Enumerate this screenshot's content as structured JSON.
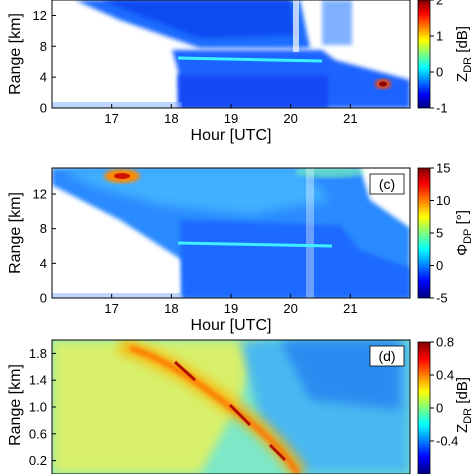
{
  "chart_data": [
    {
      "type": "heatmap",
      "panel_label": "",
      "xlabel": "Hour [UTC]",
      "ylabel": "Range [km]",
      "xlim": [
        16,
        22
      ],
      "ylim": [
        0,
        14
      ],
      "x_ticks": [
        "17",
        "18",
        "19",
        "20",
        "21"
      ],
      "y_ticks": [
        "0",
        "4",
        "8",
        "12"
      ],
      "colorbar": {
        "label": "Z_DR [dB]",
        "label_main": "Z",
        "label_sub": "DR",
        "label_unit": " [dB]",
        "range": [
          -1,
          2
        ],
        "ticks": [
          "-1",
          "0",
          "1",
          "2"
        ]
      },
      "features": [
        {
          "name": "melting layer",
          "x_start": 18.0,
          "x_end": 20.7,
          "y": 6.1
        }
      ]
    },
    {
      "type": "heatmap",
      "panel_label": "(c)",
      "xlabel": "Hour [UTC]",
      "ylabel": "Range [km]",
      "xlim": [
        16,
        22
      ],
      "ylim": [
        0,
        15
      ],
      "x_ticks": [
        "17",
        "18",
        "19",
        "20",
        "21"
      ],
      "y_ticks": [
        "0",
        "4",
        "8",
        "12"
      ],
      "colorbar": {
        "label": "ΦDP [°]",
        "label_main": "Φ",
        "label_sub": "DP",
        "label_unit": " [°]",
        "range": [
          -5,
          15
        ],
        "ticks": [
          "-5",
          "0",
          "5",
          "10",
          "15"
        ]
      },
      "features": [
        {
          "name": "melting layer",
          "x_start": 18.0,
          "x_end": 20.7,
          "y": 6.0
        }
      ]
    },
    {
      "type": "heatmap",
      "panel_label": "(d)",
      "xlabel": "",
      "ylabel": "Range [km]",
      "ylim": [
        0,
        2.0
      ],
      "y_ticks": [
        "0.2",
        "0.6",
        "1.0",
        "1.4",
        "1.8"
      ],
      "colorbar": {
        "label": "ZDR [dB]",
        "label_main": "Z",
        "label_sub": "DR",
        "label_unit": " [dB]",
        "range": [
          -0.8,
          0.8
        ],
        "ticks": [
          "0.8",
          "0.4",
          "0",
          "-0.4"
        ]
      }
    }
  ],
  "colors": {
    "colormap": [
      "#00007f",
      "#0000ff",
      "#007fff",
      "#00ffff",
      "#7fff7f",
      "#ffff00",
      "#ff7f00",
      "#ff0000",
      "#7f0000"
    ]
  }
}
